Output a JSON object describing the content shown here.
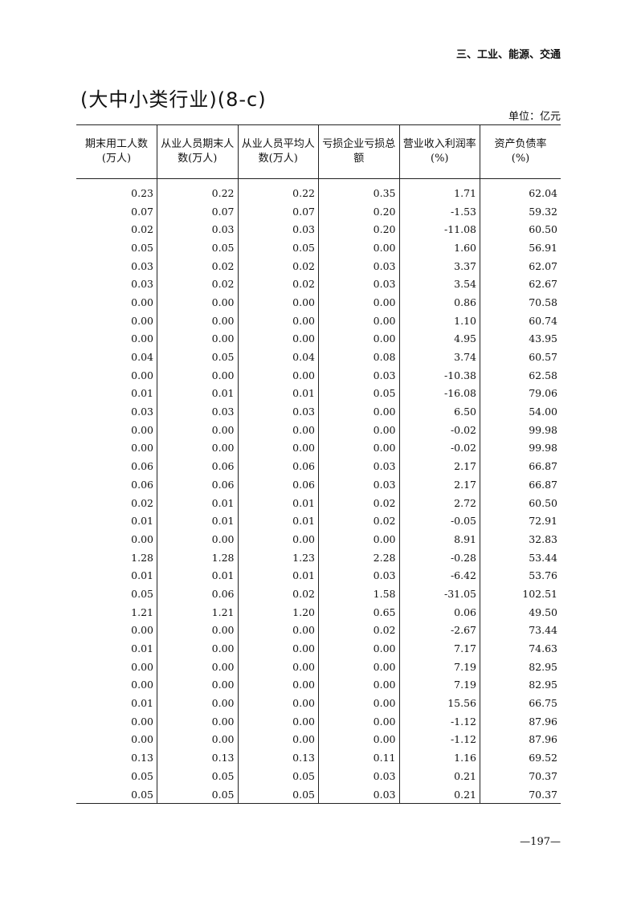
{
  "section_header": "三、工业、能源、交通",
  "title": "(大中小类行业)(8-c)",
  "unit": "单位：亿元",
  "columns": [
    {
      "line1": "期末用工人数",
      "line2": "(万人)"
    },
    {
      "line1": "从业人员期末人",
      "line2": "数(万人)"
    },
    {
      "line1": "从业人员平均人",
      "line2": "数(万人)"
    },
    {
      "line1": "亏损企业亏损总",
      "line2": "额"
    },
    {
      "line1": "营业收入利润率",
      "line2": "(%)"
    },
    {
      "line1": "资产负债率",
      "line2": "(%)"
    }
  ],
  "rows": [
    [
      "0.23",
      "0.22",
      "0.22",
      "0.35",
      "1.71",
      "62.04"
    ],
    [
      "0.07",
      "0.07",
      "0.07",
      "0.20",
      "-1.53",
      "59.32"
    ],
    [
      "0.02",
      "0.03",
      "0.03",
      "0.20",
      "-11.08",
      "60.50"
    ],
    [
      "0.05",
      "0.05",
      "0.05",
      "0.00",
      "1.60",
      "56.91"
    ],
    [
      "0.03",
      "0.02",
      "0.02",
      "0.03",
      "3.37",
      "62.07"
    ],
    [
      "0.03",
      "0.02",
      "0.02",
      "0.03",
      "3.54",
      "62.67"
    ],
    [
      "0.00",
      "0.00",
      "0.00",
      "0.00",
      "0.86",
      "70.58"
    ],
    [
      "0.00",
      "0.00",
      "0.00",
      "0.00",
      "1.10",
      "60.74"
    ],
    [
      "0.00",
      "0.00",
      "0.00",
      "0.00",
      "4.95",
      "43.95"
    ],
    [
      "0.04",
      "0.05",
      "0.04",
      "0.08",
      "3.74",
      "60.57"
    ],
    [
      "0.00",
      "0.00",
      "0.00",
      "0.03",
      "-10.38",
      "62.58"
    ],
    [
      "0.01",
      "0.01",
      "0.01",
      "0.05",
      "-16.08",
      "79.06"
    ],
    [
      "0.03",
      "0.03",
      "0.03",
      "0.00",
      "6.50",
      "54.00"
    ],
    [
      "0.00",
      "0.00",
      "0.00",
      "0.00",
      "-0.02",
      "99.98"
    ],
    [
      "0.00",
      "0.00",
      "0.00",
      "0.00",
      "-0.02",
      "99.98"
    ],
    [
      "0.06",
      "0.06",
      "0.06",
      "0.03",
      "2.17",
      "66.87"
    ],
    [
      "0.06",
      "0.06",
      "0.06",
      "0.03",
      "2.17",
      "66.87"
    ],
    [
      "0.02",
      "0.01",
      "0.01",
      "0.02",
      "2.72",
      "60.50"
    ],
    [
      "0.01",
      "0.01",
      "0.01",
      "0.02",
      "-0.05",
      "72.91"
    ],
    [
      "0.00",
      "0.00",
      "0.00",
      "0.00",
      "8.91",
      "32.83"
    ],
    [
      "1.28",
      "1.28",
      "1.23",
      "2.28",
      "-0.28",
      "53.44"
    ],
    [
      "0.01",
      "0.01",
      "0.01",
      "0.03",
      "-6.42",
      "53.76"
    ],
    [
      "0.05",
      "0.06",
      "0.02",
      "1.58",
      "-31.05",
      "102.51"
    ],
    [
      "1.21",
      "1.21",
      "1.20",
      "0.65",
      "0.06",
      "49.50"
    ],
    [
      "0.00",
      "0.00",
      "0.00",
      "0.02",
      "-2.67",
      "73.44"
    ],
    [
      "0.01",
      "0.00",
      "0.00",
      "0.00",
      "7.17",
      "74.63"
    ],
    [
      "0.00",
      "0.00",
      "0.00",
      "0.00",
      "7.19",
      "82.95"
    ],
    [
      "0.00",
      "0.00",
      "0.00",
      "0.00",
      "7.19",
      "82.95"
    ],
    [
      "0.01",
      "0.00",
      "0.00",
      "0.00",
      "15.56",
      "66.75"
    ],
    [
      "0.00",
      "0.00",
      "0.00",
      "0.00",
      "-1.12",
      "87.96"
    ],
    [
      "0.00",
      "0.00",
      "0.00",
      "0.00",
      "-1.12",
      "87.96"
    ],
    [
      "0.13",
      "0.13",
      "0.13",
      "0.11",
      "1.16",
      "69.52"
    ],
    [
      "0.05",
      "0.05",
      "0.05",
      "0.03",
      "0.21",
      "70.37"
    ],
    [
      "0.05",
      "0.05",
      "0.05",
      "0.03",
      "0.21",
      "70.37"
    ]
  ],
  "page_number": "—197—"
}
